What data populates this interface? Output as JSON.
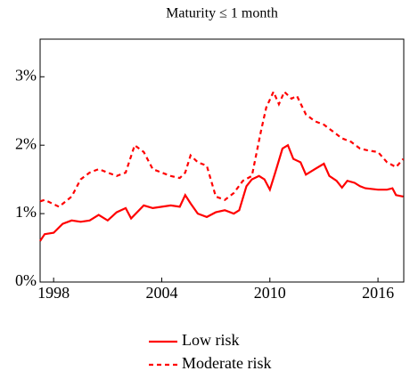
{
  "chart_data": {
    "type": "line",
    "title": "Maturity ≤ 1 month",
    "xlim": [
      1997.25,
      2017.43
    ],
    "xticks": [
      1998,
      2004,
      2010,
      2016
    ],
    "ylim": [
      0,
      3.55
    ],
    "yticks": [
      {
        "value": 0,
        "label": "0%"
      },
      {
        "value": 1,
        "label": "1%"
      },
      {
        "value": 2,
        "label": "2%"
      },
      {
        "value": 3,
        "label": "3%"
      }
    ],
    "legend": "bottom",
    "series": [
      {
        "name": "Low risk",
        "color": "#ff0000",
        "line_style": "solid",
        "x": [
          1997.25,
          1997.5,
          1998,
          1998.5,
          1999,
          1999.5,
          2000,
          2000.5,
          2001,
          2001.5,
          2002,
          2002.3,
          2003,
          2003.5,
          2004,
          2004.5,
          2005,
          2005.3,
          2005.6,
          2006,
          2006.5,
          2007,
          2007.5,
          2008,
          2008.3,
          2008.7,
          2009,
          2009.4,
          2009.7,
          2010,
          2010.3,
          2010.7,
          2011,
          2011.3,
          2011.7,
          2012,
          2012.5,
          2013,
          2013.3,
          2013.7,
          2014,
          2014.3,
          2014.7,
          2015,
          2015.3,
          2016,
          2016.5,
          2016.8,
          2017,
          2017.4
        ],
        "values": [
          0.6,
          0.7,
          0.72,
          0.85,
          0.9,
          0.88,
          0.9,
          0.98,
          0.9,
          1.02,
          1.08,
          0.93,
          1.12,
          1.08,
          1.1,
          1.12,
          1.1,
          1.27,
          1.15,
          1.0,
          0.95,
          1.02,
          1.05,
          1.0,
          1.05,
          1.4,
          1.5,
          1.55,
          1.5,
          1.35,
          1.6,
          1.95,
          2.0,
          1.8,
          1.75,
          1.57,
          1.65,
          1.73,
          1.55,
          1.48,
          1.38,
          1.48,
          1.45,
          1.4,
          1.37,
          1.35,
          1.35,
          1.37,
          1.27,
          1.25
        ]
      },
      {
        "name": "Moderate risk",
        "color": "#ff0000",
        "line_style": "dashed",
        "x": [
          1997.25,
          1997.5,
          1998.3,
          1999,
          1999.5,
          2000,
          2000.5,
          2001,
          2001.5,
          2002,
          2002.5,
          2003,
          2003.5,
          2004,
          2004.5,
          2005,
          2005.3,
          2005.6,
          2006,
          2006.5,
          2007,
          2007.5,
          2008,
          2008.5,
          2009,
          2009.5,
          2009.8,
          2010.2,
          2010.5,
          2010.8,
          2011.2,
          2011.5,
          2012,
          2012.5,
          2013,
          2013.5,
          2014,
          2014.5,
          2015,
          2015.5,
          2016,
          2016.5,
          2017,
          2017.4
        ],
        "values": [
          1.18,
          1.2,
          1.1,
          1.25,
          1.5,
          1.6,
          1.65,
          1.6,
          1.55,
          1.6,
          2.0,
          1.9,
          1.65,
          1.6,
          1.55,
          1.52,
          1.6,
          1.85,
          1.75,
          1.7,
          1.25,
          1.2,
          1.3,
          1.48,
          1.55,
          2.2,
          2.55,
          2.78,
          2.6,
          2.78,
          2.68,
          2.72,
          2.45,
          2.35,
          2.3,
          2.2,
          2.1,
          2.05,
          1.95,
          1.92,
          1.9,
          1.75,
          1.68,
          1.8
        ]
      }
    ]
  }
}
